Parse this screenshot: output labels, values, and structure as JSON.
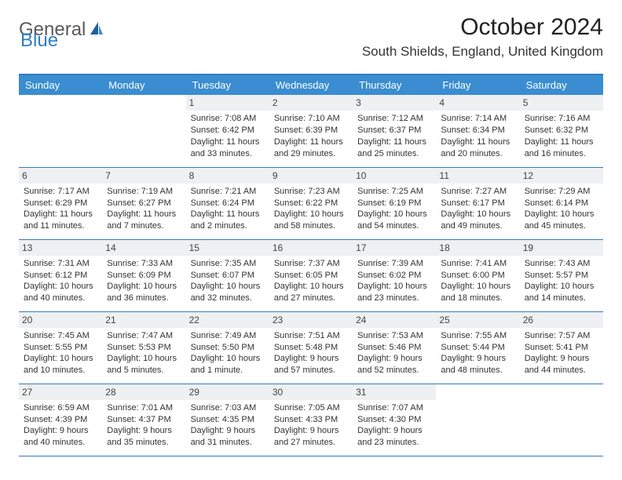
{
  "logo": {
    "gray": "General",
    "blue": "Blue"
  },
  "title": "October 2024",
  "location": "South Shields, England, United Kingdom",
  "accent_color": "#3a8dd0",
  "border_color": "#2f7dc4",
  "header_bg": "#eef0f1",
  "weekdays": [
    "Sunday",
    "Monday",
    "Tuesday",
    "Wednesday",
    "Thursday",
    "Friday",
    "Saturday"
  ],
  "weeks": [
    [
      null,
      null,
      {
        "n": "1",
        "sr": "Sunrise: 7:08 AM",
        "ss": "Sunset: 6:42 PM",
        "dl": "Daylight: 11 hours and 33 minutes."
      },
      {
        "n": "2",
        "sr": "Sunrise: 7:10 AM",
        "ss": "Sunset: 6:39 PM",
        "dl": "Daylight: 11 hours and 29 minutes."
      },
      {
        "n": "3",
        "sr": "Sunrise: 7:12 AM",
        "ss": "Sunset: 6:37 PM",
        "dl": "Daylight: 11 hours and 25 minutes."
      },
      {
        "n": "4",
        "sr": "Sunrise: 7:14 AM",
        "ss": "Sunset: 6:34 PM",
        "dl": "Daylight: 11 hours and 20 minutes."
      },
      {
        "n": "5",
        "sr": "Sunrise: 7:16 AM",
        "ss": "Sunset: 6:32 PM",
        "dl": "Daylight: 11 hours and 16 minutes."
      }
    ],
    [
      {
        "n": "6",
        "sr": "Sunrise: 7:17 AM",
        "ss": "Sunset: 6:29 PM",
        "dl": "Daylight: 11 hours and 11 minutes."
      },
      {
        "n": "7",
        "sr": "Sunrise: 7:19 AM",
        "ss": "Sunset: 6:27 PM",
        "dl": "Daylight: 11 hours and 7 minutes."
      },
      {
        "n": "8",
        "sr": "Sunrise: 7:21 AM",
        "ss": "Sunset: 6:24 PM",
        "dl": "Daylight: 11 hours and 2 minutes."
      },
      {
        "n": "9",
        "sr": "Sunrise: 7:23 AM",
        "ss": "Sunset: 6:22 PM",
        "dl": "Daylight: 10 hours and 58 minutes."
      },
      {
        "n": "10",
        "sr": "Sunrise: 7:25 AM",
        "ss": "Sunset: 6:19 PM",
        "dl": "Daylight: 10 hours and 54 minutes."
      },
      {
        "n": "11",
        "sr": "Sunrise: 7:27 AM",
        "ss": "Sunset: 6:17 PM",
        "dl": "Daylight: 10 hours and 49 minutes."
      },
      {
        "n": "12",
        "sr": "Sunrise: 7:29 AM",
        "ss": "Sunset: 6:14 PM",
        "dl": "Daylight: 10 hours and 45 minutes."
      }
    ],
    [
      {
        "n": "13",
        "sr": "Sunrise: 7:31 AM",
        "ss": "Sunset: 6:12 PM",
        "dl": "Daylight: 10 hours and 40 minutes."
      },
      {
        "n": "14",
        "sr": "Sunrise: 7:33 AM",
        "ss": "Sunset: 6:09 PM",
        "dl": "Daylight: 10 hours and 36 minutes."
      },
      {
        "n": "15",
        "sr": "Sunrise: 7:35 AM",
        "ss": "Sunset: 6:07 PM",
        "dl": "Daylight: 10 hours and 32 minutes."
      },
      {
        "n": "16",
        "sr": "Sunrise: 7:37 AM",
        "ss": "Sunset: 6:05 PM",
        "dl": "Daylight: 10 hours and 27 minutes."
      },
      {
        "n": "17",
        "sr": "Sunrise: 7:39 AM",
        "ss": "Sunset: 6:02 PM",
        "dl": "Daylight: 10 hours and 23 minutes."
      },
      {
        "n": "18",
        "sr": "Sunrise: 7:41 AM",
        "ss": "Sunset: 6:00 PM",
        "dl": "Daylight: 10 hours and 18 minutes."
      },
      {
        "n": "19",
        "sr": "Sunrise: 7:43 AM",
        "ss": "Sunset: 5:57 PM",
        "dl": "Daylight: 10 hours and 14 minutes."
      }
    ],
    [
      {
        "n": "20",
        "sr": "Sunrise: 7:45 AM",
        "ss": "Sunset: 5:55 PM",
        "dl": "Daylight: 10 hours and 10 minutes."
      },
      {
        "n": "21",
        "sr": "Sunrise: 7:47 AM",
        "ss": "Sunset: 5:53 PM",
        "dl": "Daylight: 10 hours and 5 minutes."
      },
      {
        "n": "22",
        "sr": "Sunrise: 7:49 AM",
        "ss": "Sunset: 5:50 PM",
        "dl": "Daylight: 10 hours and 1 minute."
      },
      {
        "n": "23",
        "sr": "Sunrise: 7:51 AM",
        "ss": "Sunset: 5:48 PM",
        "dl": "Daylight: 9 hours and 57 minutes."
      },
      {
        "n": "24",
        "sr": "Sunrise: 7:53 AM",
        "ss": "Sunset: 5:46 PM",
        "dl": "Daylight: 9 hours and 52 minutes."
      },
      {
        "n": "25",
        "sr": "Sunrise: 7:55 AM",
        "ss": "Sunset: 5:44 PM",
        "dl": "Daylight: 9 hours and 48 minutes."
      },
      {
        "n": "26",
        "sr": "Sunrise: 7:57 AM",
        "ss": "Sunset: 5:41 PM",
        "dl": "Daylight: 9 hours and 44 minutes."
      }
    ],
    [
      {
        "n": "27",
        "sr": "Sunrise: 6:59 AM",
        "ss": "Sunset: 4:39 PM",
        "dl": "Daylight: 9 hours and 40 minutes."
      },
      {
        "n": "28",
        "sr": "Sunrise: 7:01 AM",
        "ss": "Sunset: 4:37 PM",
        "dl": "Daylight: 9 hours and 35 minutes."
      },
      {
        "n": "29",
        "sr": "Sunrise: 7:03 AM",
        "ss": "Sunset: 4:35 PM",
        "dl": "Daylight: 9 hours and 31 minutes."
      },
      {
        "n": "30",
        "sr": "Sunrise: 7:05 AM",
        "ss": "Sunset: 4:33 PM",
        "dl": "Daylight: 9 hours and 27 minutes."
      },
      {
        "n": "31",
        "sr": "Sunrise: 7:07 AM",
        "ss": "Sunset: 4:30 PM",
        "dl": "Daylight: 9 hours and 23 minutes."
      },
      null,
      null
    ]
  ]
}
